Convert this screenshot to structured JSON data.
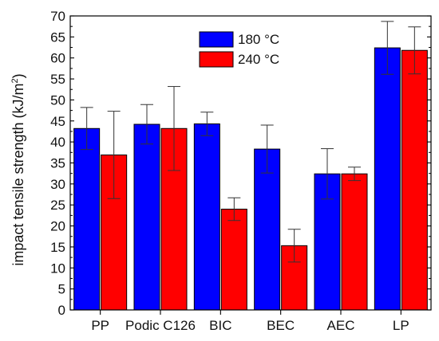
{
  "chart_data": {
    "type": "bar",
    "categories": [
      "PP",
      "Podic C126",
      "BIC",
      "BEC",
      "AEC",
      "LP"
    ],
    "series": [
      {
        "name": "180 °C",
        "color": "#0000ff",
        "values": [
          43.2,
          44.2,
          44.3,
          38.3,
          32.4,
          62.4
        ],
        "errors": [
          5.0,
          4.7,
          2.8,
          5.7,
          6.0,
          6.3
        ]
      },
      {
        "name": "240 °C",
        "color": "#ff0000",
        "values": [
          36.9,
          43.2,
          24.0,
          15.3,
          32.4,
          61.8
        ],
        "errors": [
          10.4,
          10.0,
          2.7,
          3.9,
          1.6,
          5.6
        ]
      }
    ],
    "ylabel_main": "impact tensile strength (kJ/m",
    "ylabel_sup": "2",
    "ylabel_close": ")",
    "ylim": [
      0,
      70
    ],
    "yticks": [
      "0",
      "5",
      "10",
      "15",
      "20",
      "25",
      "30",
      "35",
      "40",
      "45",
      "50",
      "55",
      "60",
      "65",
      "70"
    ],
    "grid": false,
    "legend_position": "top-center"
  }
}
